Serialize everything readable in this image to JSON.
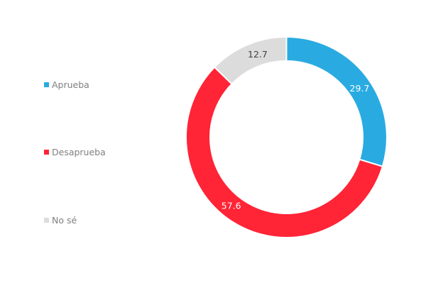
{
  "chart_data": {
    "type": "pie",
    "variant": "donut",
    "title": "",
    "categories": [
      "Aprueba",
      "Desaprueba",
      "No sé"
    ],
    "values": [
      29.7,
      57.6,
      12.7
    ],
    "colors": [
      "#29abe2",
      "#ff2436",
      "#dcdcdc"
    ],
    "label_colors": [
      "#ffffff",
      "#ffffff",
      "#404040"
    ],
    "data_labels": [
      "29.7",
      "57.6",
      "12.7"
    ],
    "start_angle_deg": 0,
    "direction": "clockwise",
    "legend_position": "left"
  }
}
